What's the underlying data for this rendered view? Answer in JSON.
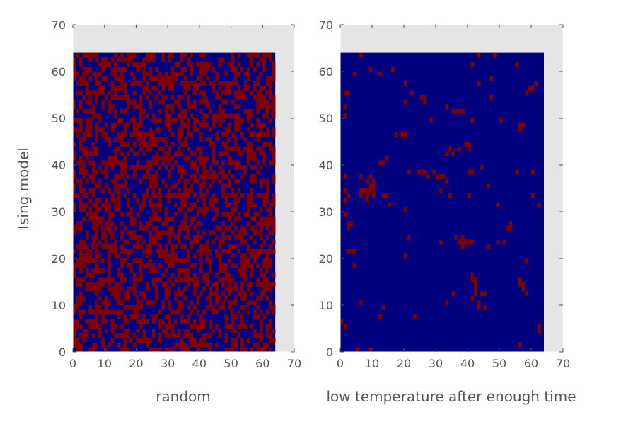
{
  "chart_data": [
    {
      "type": "heatmap",
      "title": "",
      "xlabel": "random",
      "ylabel": "Ising model",
      "xlim": [
        0,
        70
      ],
      "ylim": [
        0,
        70
      ],
      "xticks": [
        0,
        10,
        20,
        30,
        40,
        50,
        60,
        70
      ],
      "yticks": [
        0,
        10,
        20,
        30,
        40,
        50,
        60,
        70
      ],
      "grid_size": [
        64,
        64
      ],
      "values_description_colors": {
        "spin_down": "#00007f",
        "spin_up": "#7f0000",
        "empty_background": "#e5e5e5"
      },
      "pattern": "random",
      "up_fraction": 0.5,
      "seed": 12345
    },
    {
      "type": "heatmap",
      "title": "",
      "xlabel": "low temperature after enough time",
      "ylabel": "",
      "xlim": [
        0,
        70
      ],
      "ylim": [
        0,
        70
      ],
      "xticks": [
        0,
        10,
        20,
        30,
        40,
        50,
        60,
        70
      ],
      "yticks": [
        0,
        10,
        20,
        30,
        40,
        50,
        60,
        70
      ],
      "grid_size": [
        64,
        64
      ],
      "pattern": "mostly_down",
      "up_cells": [
        [
          6,
          63
        ],
        [
          43,
          63
        ],
        [
          4,
          59
        ],
        [
          9,
          60
        ],
        [
          12,
          59
        ],
        [
          16,
          60
        ],
        [
          41,
          61
        ],
        [
          48,
          63
        ],
        [
          55,
          61
        ],
        [
          1,
          55
        ],
        [
          2,
          55
        ],
        [
          20,
          57
        ],
        [
          22,
          55
        ],
        [
          25,
          54
        ],
        [
          26,
          54
        ],
        [
          26,
          53
        ],
        [
          20,
          53
        ],
        [
          47,
          58
        ],
        [
          43,
          57
        ],
        [
          47,
          54
        ],
        [
          58,
          55
        ],
        [
          59,
          56
        ],
        [
          60,
          56
        ],
        [
          61,
          57
        ],
        [
          1,
          50
        ],
        [
          1,
          52
        ],
        [
          33,
          52
        ],
        [
          35,
          51
        ],
        [
          36,
          51
        ],
        [
          37,
          51
        ],
        [
          38,
          51
        ],
        [
          28,
          49
        ],
        [
          41,
          49
        ],
        [
          50,
          49
        ],
        [
          56,
          48
        ],
        [
          56,
          47
        ],
        [
          57,
          48
        ],
        [
          19,
          46
        ],
        [
          20,
          46
        ],
        [
          17,
          46
        ],
        [
          33,
          42
        ],
        [
          34,
          43
        ],
        [
          35,
          42
        ],
        [
          37,
          43
        ],
        [
          39,
          44
        ],
        [
          40,
          44
        ],
        [
          40,
          43
        ],
        [
          14,
          41
        ],
        [
          13,
          40
        ],
        [
          12,
          40
        ],
        [
          21,
          38
        ],
        [
          24,
          38
        ],
        [
          25,
          38
        ],
        [
          26,
          38
        ],
        [
          27,
          37
        ],
        [
          29,
          38
        ],
        [
          30,
          37
        ],
        [
          31,
          37
        ],
        [
          32,
          37
        ],
        [
          33,
          36
        ],
        [
          40,
          38
        ],
        [
          41,
          38
        ],
        [
          44,
          39
        ],
        [
          55,
          38
        ],
        [
          60,
          38
        ],
        [
          1,
          37
        ],
        [
          6,
          37
        ],
        [
          8,
          36
        ],
        [
          9,
          37
        ],
        [
          10,
          36
        ],
        [
          10,
          35
        ],
        [
          9,
          35
        ],
        [
          8,
          34
        ],
        [
          9,
          34
        ],
        [
          7,
          34
        ],
        [
          6,
          34
        ],
        [
          10,
          34
        ],
        [
          10,
          33
        ],
        [
          8,
          33
        ],
        [
          6,
          33
        ],
        [
          1,
          34
        ],
        [
          2,
          33
        ],
        [
          1,
          32
        ],
        [
          13,
          33
        ],
        [
          14,
          33
        ],
        [
          8,
          32
        ],
        [
          15,
          31
        ],
        [
          20,
          30
        ],
        [
          31,
          34
        ],
        [
          34,
          33
        ],
        [
          40,
          33
        ],
        [
          46,
          35
        ],
        [
          49,
          31
        ],
        [
          60,
          33
        ],
        [
          62,
          31
        ],
        [
          1,
          29
        ],
        [
          2,
          27
        ],
        [
          3,
          27
        ],
        [
          2,
          26
        ],
        [
          52,
          26
        ],
        [
          53,
          27
        ],
        [
          53,
          26
        ],
        [
          21,
          24
        ],
        [
          36,
          24
        ],
        [
          31,
          23
        ],
        [
          37,
          23
        ],
        [
          38,
          23
        ],
        [
          38,
          24
        ],
        [
          38,
          22
        ],
        [
          38,
          23
        ],
        [
          39,
          23
        ],
        [
          40,
          23
        ],
        [
          41,
          23
        ],
        [
          49,
          23
        ],
        [
          51,
          23
        ],
        [
          46,
          22
        ],
        [
          2,
          21
        ],
        [
          3,
          21
        ],
        [
          4,
          21
        ],
        [
          20,
          20
        ],
        [
          4,
          18
        ],
        [
          58,
          19
        ],
        [
          41,
          16
        ],
        [
          42,
          15
        ],
        [
          41,
          15
        ],
        [
          42,
          14
        ],
        [
          42,
          13
        ],
        [
          42,
          12
        ],
        [
          44,
          12
        ],
        [
          45,
          12
        ],
        [
          41,
          11
        ],
        [
          43,
          10
        ],
        [
          43,
          9
        ],
        [
          45,
          9
        ],
        [
          56,
          15
        ],
        [
          56,
          14
        ],
        [
          57,
          14
        ],
        [
          57,
          13
        ],
        [
          58,
          12
        ],
        [
          33,
          10
        ],
        [
          13,
          9
        ],
        [
          6,
          10
        ],
        [
          35,
          12
        ],
        [
          12,
          7
        ],
        [
          23,
          7
        ],
        [
          0,
          6
        ],
        [
          1,
          5
        ],
        [
          62,
          5
        ],
        [
          62,
          4
        ],
        [
          56,
          1
        ],
        [
          5,
          0
        ],
        [
          9,
          0
        ]
      ]
    }
  ]
}
